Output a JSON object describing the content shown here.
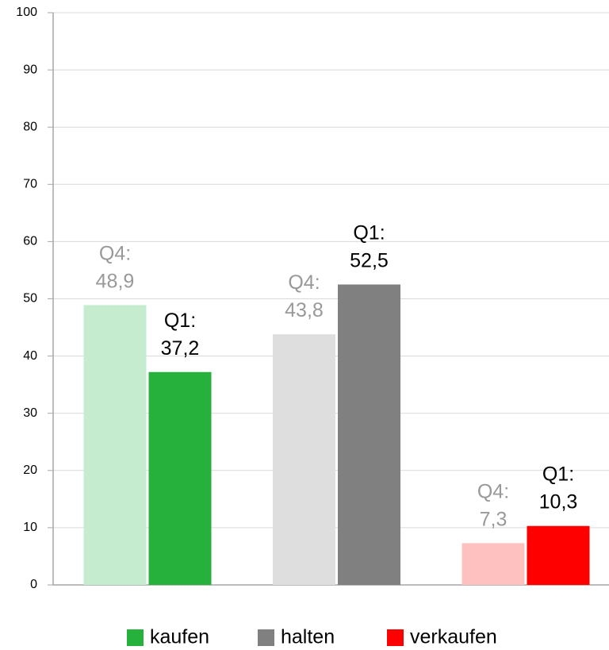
{
  "chart_data": {
    "type": "bar",
    "series": [
      {
        "name": "kaufen",
        "colors": [
          "#c6ecd0",
          "#25b13b"
        ],
        "values": [
          48.9,
          37.2
        ],
        "value_labels": [
          "Q4:\n48,9",
          "Q1:\n37,2"
        ]
      },
      {
        "name": "halten",
        "colors": [
          "#dedede",
          "#808080"
        ],
        "values": [
          43.8,
          52.5
        ],
        "value_labels": [
          "Q4:\n43,8",
          "Q1:\n52,5"
        ]
      },
      {
        "name": "verkaufen",
        "colors": [
          "#ffc0c0",
          "#ff0000"
        ],
        "values": [
          7.3,
          10.3
        ],
        "value_labels": [
          "Q4:\n7,3",
          "Q1:\n10,3"
        ]
      }
    ],
    "label_colors": [
      "#999999",
      "#000000"
    ],
    "ylim": [
      0,
      100
    ],
    "yticks": [
      0,
      10,
      20,
      30,
      40,
      50,
      60,
      70,
      80,
      90,
      100
    ],
    "grid": true,
    "legend": "bottom"
  }
}
